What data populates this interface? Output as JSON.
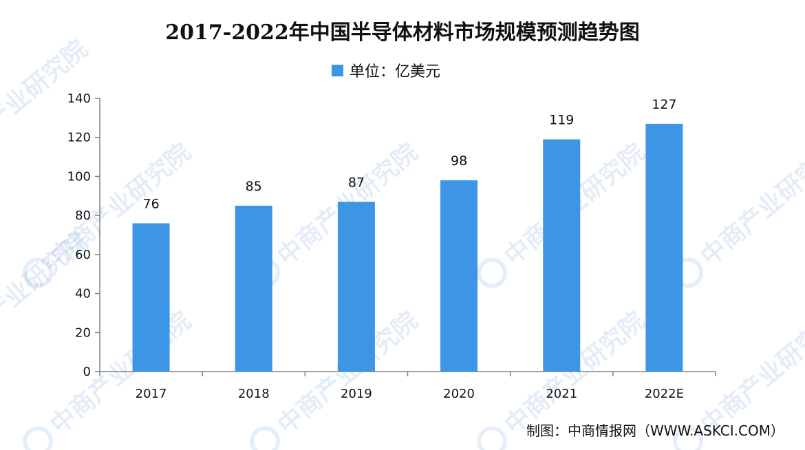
{
  "chart_data": {
    "type": "bar",
    "title": "2017-2022年中国半导体材料市场规模预测趋势图",
    "legend": {
      "label": "单位：亿美元",
      "placement": "top-center"
    },
    "categories": [
      "2017",
      "2018",
      "2019",
      "2020",
      "2021",
      "2022E"
    ],
    "series": [
      {
        "values": [
          76,
          85,
          87,
          98,
          119,
          127
        ],
        "color": "#3d95e6"
      }
    ],
    "data_labels": [
      "76",
      "85",
      "87",
      "98",
      "119",
      "127"
    ],
    "ylim": [
      0,
      140
    ],
    "yticks": [
      0,
      20,
      40,
      60,
      80,
      100,
      120,
      140
    ],
    "grid": false
  },
  "source": "制图：中商情报网（WWW.ASKCI.COM）",
  "watermark": {
    "text": "中商产业研究院",
    "color": "#3a78c9"
  }
}
